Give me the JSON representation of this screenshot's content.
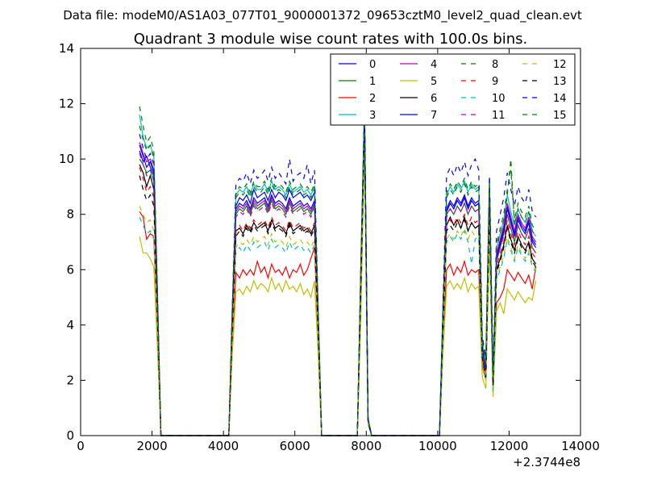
{
  "figure": {
    "suptitle": "Data file: modeM0/AS1A03_077T01_9000001372_09653cztM0_level2_quad_clean.evt"
  },
  "chart_data": {
    "type": "line",
    "title": "Quadrant 3 module wise count rates with 100.0s bins.",
    "xlabel": "",
    "ylabel": "",
    "x_offset_label": "+2.3744e8",
    "xlim": [
      0,
      14000
    ],
    "ylim": [
      0,
      14
    ],
    "x_ticks": [
      0,
      2000,
      4000,
      6000,
      8000,
      10000,
      12000,
      14000
    ],
    "x_tick_labels": [
      "0",
      "2000",
      "4000",
      "6000",
      "8000",
      "10000",
      "12000",
      "14000"
    ],
    "y_ticks": [
      0,
      2,
      4,
      6,
      8,
      10,
      12,
      14
    ],
    "y_tick_labels": [
      "0",
      "2",
      "4",
      "6",
      "8",
      "10",
      "12",
      "14"
    ],
    "grid": false,
    "legend": {
      "placement": "top-right",
      "columns": 4
    },
    "x": [
      1650,
      1750,
      1850,
      1950,
      2050,
      2150,
      2250,
      2350,
      4150,
      4250,
      4350,
      4450,
      4550,
      4650,
      4750,
      4850,
      4950,
      5050,
      5150,
      5250,
      5350,
      5450,
      5550,
      5650,
      5750,
      5850,
      5950,
      6050,
      6150,
      6250,
      6350,
      6450,
      6550,
      6650,
      6750,
      7750,
      7850,
      7950,
      8050,
      8150,
      10050,
      10150,
      10250,
      10350,
      10450,
      10550,
      10650,
      10750,
      10850,
      10950,
      11050,
      11150,
      11250,
      11350,
      11450,
      11550,
      11650,
      11750,
      11850,
      11950,
      12050,
      12150,
      12250,
      12350,
      12450,
      12550,
      12650,
      12750
    ],
    "series": [
      {
        "name": "0",
        "color": "#0000ff",
        "dash": "solid",
        "values": [
          10.3,
          9.9,
          10.1,
          9.7,
          9.4,
          5.0,
          0,
          0,
          0,
          4.5,
          8.3,
          8.6,
          8.5,
          8.7,
          8.4,
          8.9,
          8.6,
          8.7,
          8.8,
          8.5,
          8.9,
          8.6,
          8.8,
          8.7,
          8.5,
          8.9,
          8.6,
          8.7,
          8.8,
          8.6,
          8.7,
          8.5,
          8.8,
          4.5,
          0,
          0,
          6.0,
          11.8,
          0.6,
          0,
          0,
          4.5,
          8.2,
          8.5,
          8.3,
          8.6,
          8.4,
          8.7,
          8.3,
          8.6,
          8.4,
          8.5,
          3.2,
          2.5,
          9.0,
          2.0,
          6.5,
          7.0,
          7.5,
          8.3,
          7.8,
          7.3,
          7.9,
          7.6,
          7.4,
          7.8,
          7.1,
          6.9
        ]
      },
      {
        "name": "1",
        "color": "#008000",
        "dash": "solid",
        "values": [
          10.0,
          9.8,
          9.5,
          9.6,
          9.2,
          4.9,
          0,
          0,
          0,
          4.4,
          8.0,
          8.2,
          8.1,
          8.3,
          8.0,
          8.4,
          8.2,
          8.3,
          8.4,
          8.1,
          8.5,
          8.2,
          8.3,
          8.2,
          8.0,
          8.4,
          8.1,
          8.2,
          8.3,
          8.1,
          8.2,
          8.0,
          8.3,
          4.3,
          0,
          0,
          5.9,
          11.6,
          0.6,
          0,
          0,
          4.4,
          8.0,
          8.2,
          8.0,
          8.3,
          8.1,
          8.4,
          8.0,
          8.3,
          8.1,
          8.2,
          3.0,
          2.4,
          8.8,
          1.9,
          6.3,
          6.8,
          7.3,
          8.0,
          7.5,
          7.0,
          7.6,
          7.3,
          7.1,
          7.5,
          6.8,
          6.6
        ]
      },
      {
        "name": "2",
        "color": "#ff0000",
        "dash": "solid",
        "values": [
          8.1,
          7.9,
          7.1,
          7.3,
          7.2,
          3.8,
          0,
          0,
          0,
          3.3,
          5.9,
          5.7,
          6.0,
          5.8,
          6.0,
          5.8,
          6.3,
          5.9,
          6.1,
          5.7,
          6.2,
          5.9,
          6.0,
          5.8,
          6.1,
          5.7,
          6.0,
          5.9,
          6.2,
          5.8,
          6.0,
          6.4,
          6.8,
          3.4,
          0,
          0,
          4.7,
          10.8,
          0.5,
          0,
          0,
          3.3,
          6.0,
          6.2,
          5.8,
          6.1,
          5.9,
          6.3,
          5.8,
          6.0,
          5.9,
          6.0,
          2.5,
          2.0,
          7.6,
          1.6,
          4.8,
          5.0,
          5.3,
          6.0,
          5.8,
          5.6,
          5.9,
          5.7,
          5.5,
          5.8,
          5.3,
          6.1
        ]
      },
      {
        "name": "3",
        "color": "#00bfbf",
        "dash": "solid",
        "values": [
          11.6,
          10.8,
          10.4,
          10.5,
          10.1,
          5.3,
          0,
          0,
          0,
          4.7,
          8.7,
          8.9,
          8.8,
          9.0,
          8.7,
          9.1,
          8.9,
          8.9,
          9.1,
          8.8,
          9.2,
          8.9,
          9.0,
          8.9,
          8.7,
          9.1,
          8.8,
          8.9,
          9.0,
          8.8,
          8.9,
          8.7,
          9.0,
          4.6,
          0,
          0,
          6.1,
          11.9,
          0.6,
          0,
          0,
          4.6,
          8.7,
          9.0,
          8.8,
          9.1,
          8.9,
          9.2,
          8.8,
          9.1,
          8.9,
          9.0,
          3.4,
          2.6,
          9.2,
          2.1,
          6.8,
          7.3,
          7.8,
          8.7,
          8.1,
          7.6,
          8.2,
          7.9,
          7.7,
          8.1,
          7.4,
          7.2
        ]
      },
      {
        "name": "4",
        "color": "#bf00bf",
        "dash": "solid",
        "values": [
          10.6,
          10.2,
          9.9,
          10.0,
          9.6,
          5.0,
          0,
          0,
          0,
          4.4,
          8.1,
          8.3,
          8.2,
          8.4,
          8.1,
          8.5,
          8.3,
          8.4,
          8.5,
          8.2,
          8.6,
          8.3,
          8.4,
          8.3,
          8.1,
          8.5,
          8.2,
          8.3,
          8.4,
          8.2,
          8.3,
          8.1,
          8.4,
          4.4,
          0,
          0,
          5.9,
          11.7,
          0.6,
          0,
          0,
          4.4,
          8.1,
          8.4,
          8.2,
          8.5,
          8.3,
          8.6,
          8.2,
          8.5,
          8.3,
          8.4,
          3.1,
          2.4,
          8.9,
          2.0,
          6.6,
          7.1,
          7.6,
          8.4,
          7.9,
          7.4,
          8.0,
          7.7,
          7.5,
          7.9,
          7.2,
          7.0
        ]
      },
      {
        "name": "5",
        "color": "#bfbf00",
        "dash": "solid",
        "values": [
          7.2,
          6.6,
          6.6,
          6.4,
          6.1,
          3.2,
          0,
          0,
          0,
          3.0,
          5.2,
          5.3,
          5.1,
          5.4,
          5.2,
          5.6,
          5.3,
          5.5,
          5.4,
          5.2,
          5.7,
          5.3,
          5.5,
          5.2,
          5.6,
          5.3,
          5.4,
          5.2,
          5.5,
          5.1,
          5.3,
          5.0,
          5.6,
          3.0,
          0,
          0,
          4.3,
          10.4,
          0.4,
          0,
          0,
          3.0,
          5.4,
          5.6,
          5.3,
          5.5,
          5.3,
          5.7,
          5.2,
          5.5,
          5.3,
          5.4,
          2.1,
          1.7,
          6.9,
          1.4,
          4.5,
          4.8,
          4.4,
          5.3,
          5.1,
          4.9,
          5.2,
          5.0,
          4.8,
          5.0,
          4.9,
          5.6
        ]
      },
      {
        "name": "6",
        "color": "#000000",
        "dash": "solid",
        "values": [
          9.8,
          9.5,
          9.0,
          9.4,
          8.9,
          4.7,
          0,
          0,
          0,
          4.1,
          7.4,
          7.5,
          7.3,
          7.6,
          7.4,
          7.7,
          7.5,
          7.6,
          7.7,
          7.4,
          7.8,
          7.5,
          7.6,
          7.5,
          7.3,
          7.7,
          7.4,
          7.5,
          7.6,
          7.4,
          7.5,
          7.3,
          7.6,
          3.9,
          0,
          0,
          5.5,
          11.3,
          0.5,
          0,
          0,
          4.0,
          7.6,
          7.9,
          7.6,
          7.8,
          7.5,
          7.9,
          7.4,
          7.7,
          7.5,
          7.6,
          2.8,
          2.2,
          8.3,
          1.8,
          6.0,
          6.4,
          6.9,
          7.6,
          7.1,
          6.7,
          7.2,
          6.9,
          6.7,
          7.0,
          6.4,
          6.2
        ]
      },
      {
        "name": "7",
        "color": "#0000ff",
        "dash": "solid",
        "values": [
          10.5,
          10.1,
          9.7,
          9.9,
          9.5,
          5.0,
          0,
          0,
          0,
          4.4,
          8.2,
          8.4,
          8.3,
          8.5,
          8.2,
          8.6,
          8.4,
          8.5,
          8.6,
          8.3,
          8.7,
          8.4,
          8.5,
          8.4,
          8.2,
          8.6,
          8.3,
          8.4,
          8.5,
          8.3,
          8.4,
          8.2,
          8.5,
          4.4,
          0,
          0,
          5.9,
          11.7,
          0.6,
          0,
          0,
          4.4,
          8.1,
          8.4,
          8.2,
          8.5,
          8.3,
          8.6,
          8.2,
          8.5,
          8.3,
          8.4,
          3.1,
          2.4,
          8.9,
          1.9,
          6.4,
          6.9,
          7.4,
          8.2,
          7.7,
          7.2,
          7.8,
          7.5,
          7.3,
          7.7,
          7.0,
          6.8
        ]
      },
      {
        "name": "8",
        "color": "#008000",
        "dash": "dashed",
        "values": [
          11.9,
          11.2,
          10.6,
          10.8,
          10.3,
          5.4,
          0,
          0,
          0,
          4.8,
          8.8,
          9.0,
          8.9,
          9.1,
          8.8,
          9.2,
          9.0,
          9.0,
          9.2,
          8.9,
          9.3,
          9.0,
          9.1,
          9.0,
          8.8,
          9.2,
          8.9,
          9.0,
          9.1,
          8.9,
          9.0,
          8.8,
          9.1,
          4.7,
          0,
          0,
          6.2,
          12.0,
          0.6,
          0,
          0,
          4.7,
          8.8,
          9.1,
          8.9,
          9.2,
          9.0,
          9.3,
          8.9,
          9.2,
          9.0,
          9.1,
          3.5,
          2.7,
          9.3,
          2.2,
          6.9,
          7.5,
          8.0,
          8.9,
          9.6,
          7.8,
          8.4,
          8.1,
          7.9,
          8.3,
          7.6,
          7.4
        ]
      },
      {
        "name": "9",
        "color": "#ff0000",
        "dash": "dashed",
        "values": [
          9.7,
          9.3,
          8.8,
          9.0,
          8.6,
          4.5,
          0,
          0,
          0,
          4.0,
          7.4,
          7.6,
          7.4,
          7.7,
          7.5,
          7.8,
          7.6,
          7.7,
          7.8,
          7.5,
          7.9,
          7.6,
          7.7,
          7.6,
          7.4,
          7.8,
          7.5,
          7.6,
          7.7,
          7.5,
          7.6,
          7.4,
          7.7,
          4.0,
          0,
          0,
          5.5,
          11.3,
          0.5,
          0,
          0,
          4.0,
          7.6,
          7.8,
          7.6,
          7.9,
          7.7,
          8.0,
          7.6,
          7.9,
          7.7,
          7.8,
          2.9,
          2.2,
          8.4,
          1.8,
          6.1,
          6.6,
          7.0,
          7.8,
          7.3,
          6.9,
          7.4,
          7.1,
          6.9,
          7.2,
          6.6,
          6.4
        ]
      },
      {
        "name": "10",
        "color": "#00bfbf",
        "dash": "dashed",
        "values": [
          7.9,
          7.6,
          7.3,
          7.4,
          7.1,
          3.7,
          0,
          0,
          0,
          3.5,
          6.6,
          6.8,
          6.6,
          6.9,
          6.7,
          7.0,
          6.8,
          6.9,
          7.0,
          6.7,
          7.1,
          6.8,
          6.9,
          6.8,
          6.6,
          7.0,
          6.7,
          6.8,
          6.9,
          6.7,
          6.8,
          6.6,
          6.9,
          3.6,
          0,
          0,
          5.0,
          10.9,
          0.5,
          0,
          0,
          3.6,
          7.0,
          7.2,
          7.0,
          7.3,
          7.1,
          7.4,
          7.0,
          6.2,
          7.1,
          7.2,
          2.6,
          2.0,
          7.8,
          1.6,
          5.6,
          6.0,
          6.4,
          7.1,
          6.7,
          6.3,
          6.8,
          6.5,
          6.3,
          6.6,
          6.1,
          5.9
        ]
      },
      {
        "name": "11",
        "color": "#bf00bf",
        "dash": "dashed",
        "values": [
          10.2,
          9.8,
          9.4,
          9.6,
          9.2,
          4.8,
          0,
          0,
          0,
          4.3,
          7.9,
          8.1,
          8.0,
          8.2,
          7.9,
          8.3,
          8.1,
          8.2,
          8.3,
          8.0,
          8.4,
          8.1,
          8.2,
          8.1,
          7.9,
          8.3,
          8.0,
          8.1,
          8.2,
          8.0,
          8.1,
          7.9,
          8.2,
          4.3,
          0,
          0,
          5.8,
          11.6,
          0.6,
          0,
          0,
          4.3,
          7.9,
          8.2,
          8.0,
          8.3,
          8.1,
          8.4,
          8.0,
          8.3,
          8.1,
          8.2,
          3.0,
          2.3,
          8.7,
          1.9,
          6.3,
          6.8,
          7.2,
          8.0,
          7.5,
          7.1,
          7.6,
          7.3,
          7.1,
          7.5,
          6.8,
          6.6
        ]
      },
      {
        "name": "12",
        "color": "#bfbf00",
        "dash": "dashed",
        "values": [
          8.3,
          8.0,
          7.7,
          7.8,
          7.4,
          3.9,
          0,
          0,
          0,
          3.6,
          6.8,
          7.0,
          6.9,
          7.1,
          6.9,
          7.2,
          7.0,
          7.1,
          7.2,
          6.9,
          7.3,
          7.0,
          7.1,
          7.0,
          6.8,
          7.2,
          6.9,
          7.0,
          7.1,
          6.9,
          7.0,
          6.8,
          7.1,
          3.7,
          0,
          0,
          5.1,
          11.0,
          0.5,
          0,
          0,
          3.7,
          7.1,
          7.3,
          7.1,
          7.4,
          7.2,
          7.5,
          7.1,
          7.4,
          7.2,
          7.3,
          2.6,
          2.0,
          7.9,
          1.7,
          5.7,
          6.1,
          6.5,
          7.2,
          6.8,
          6.4,
          6.9,
          6.6,
          6.4,
          6.7,
          6.2,
          6.0
        ]
      },
      {
        "name": "13",
        "color": "#000000",
        "dash": "dashed",
        "values": [
          9.4,
          8.9,
          8.5,
          8.7,
          8.3,
          4.4,
          0,
          0,
          0,
          3.9,
          7.2,
          7.4,
          7.2,
          7.5,
          7.3,
          7.6,
          7.4,
          7.5,
          7.6,
          7.3,
          7.7,
          7.4,
          7.5,
          7.4,
          7.2,
          7.6,
          7.3,
          7.4,
          7.5,
          7.3,
          7.4,
          7.2,
          7.5,
          3.9,
          0,
          0,
          5.4,
          11.2,
          0.5,
          0,
          0,
          3.9,
          7.4,
          7.6,
          7.4,
          7.7,
          7.5,
          7.8,
          7.4,
          7.7,
          7.5,
          7.6,
          2.8,
          2.1,
          8.2,
          1.8,
          5.9,
          6.3,
          6.8,
          7.5,
          7.0,
          6.6,
          7.1,
          6.8,
          6.6,
          6.9,
          6.3,
          6.1
        ]
      },
      {
        "name": "14",
        "color": "#0000ff",
        "dash": "dashed",
        "values": [
          10.9,
          10.4,
          10.0,
          10.2,
          9.8,
          5.1,
          0,
          0,
          0,
          4.6,
          9.1,
          9.3,
          9.2,
          9.5,
          9.1,
          9.6,
          9.3,
          9.4,
          9.6,
          9.2,
          9.7,
          9.3,
          9.5,
          9.3,
          9.1,
          10.0,
          9.2,
          9.4,
          9.5,
          9.3,
          9.8,
          9.1,
          9.6,
          4.8,
          0,
          0,
          6.3,
          12.0,
          0.6,
          0,
          0,
          4.8,
          9.4,
          9.7,
          9.4,
          9.8,
          9.5,
          9.9,
          9.4,
          9.8,
          10.0,
          9.6,
          3.6,
          2.8,
          9.4,
          2.2,
          7.4,
          8.0,
          8.6,
          9.5,
          8.9,
          8.3,
          9.0,
          8.6,
          8.4,
          8.9,
          8.1,
          7.9
        ]
      },
      {
        "name": "15",
        "color": "#008000",
        "dash": "dashed",
        "values": [
          11.2,
          10.7,
          10.3,
          10.5,
          10.0,
          5.2,
          0,
          0,
          0,
          4.7,
          8.6,
          8.8,
          8.7,
          8.9,
          8.6,
          9.0,
          8.8,
          8.8,
          9.0,
          8.7,
          9.1,
          8.8,
          8.9,
          8.8,
          8.6,
          9.0,
          8.7,
          8.8,
          8.9,
          8.7,
          8.8,
          8.6,
          8.9,
          4.6,
          0,
          0,
          6.1,
          11.9,
          0.6,
          0,
          0,
          4.6,
          8.6,
          8.9,
          8.7,
          9.0,
          8.8,
          9.1,
          8.7,
          9.0,
          8.8,
          8.9,
          3.4,
          2.6,
          9.1,
          2.1,
          6.8,
          7.3,
          7.8,
          8.7,
          10.0,
          7.6,
          8.2,
          7.9,
          7.7,
          8.1,
          7.4,
          7.2
        ]
      }
    ]
  }
}
